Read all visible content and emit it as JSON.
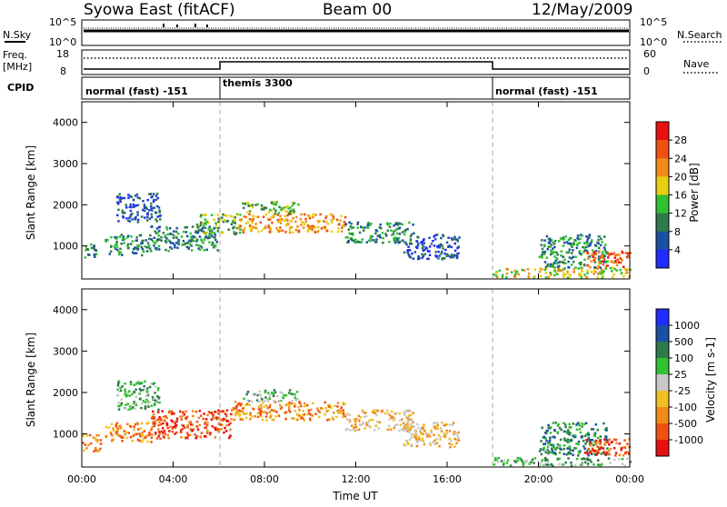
{
  "header": {
    "station": "Syowa East (fitACF)",
    "beam": "Beam 00",
    "date": "12/May/2009"
  },
  "noise_panel": {
    "left_label": "N.Sky",
    "right_label": "N.Search",
    "tick_top": "10^5",
    "tick_bottom": "10^0"
  },
  "freq_panel": {
    "left_label_line1": "Freq.",
    "left_label_line2": "[MHz]",
    "left_tick_top": "18",
    "left_tick_bottom": "8",
    "right_label": "Nave",
    "right_tick_top": "60",
    "right_tick_bottom": "0"
  },
  "cpid": {
    "label": "CPID",
    "segments": [
      {
        "start_h": 0,
        "end_h": 6,
        "name": "normal (fast) -151"
      },
      {
        "start_h": 6,
        "end_h": 18,
        "name": "themis 3300"
      },
      {
        "start_h": 18,
        "end_h": 24,
        "name": "normal (fast) -151"
      }
    ]
  },
  "chart_data": [
    {
      "type": "heatmap",
      "panel": "power",
      "ylabel": "Slant Range [km]",
      "y_ticks": [
        "1000",
        "2000",
        "3000",
        "4000"
      ],
      "ylim": [
        200,
        4500
      ],
      "xlim": [
        0,
        24
      ],
      "colorbar_label": "Power [dB]",
      "colorbar_ticks": [
        "4",
        "8",
        "12",
        "16",
        "20",
        "24",
        "28"
      ],
      "colors": [
        "#1f2bff",
        "#1c4fa6",
        "#2f7a4a",
        "#30c030",
        "#e8d010",
        "#f08a18",
        "#f05010",
        "#e81010"
      ],
      "echo_bands": [
        {
          "start_h": 0.0,
          "end_h": 0.6,
          "range_km": [
            700,
            1100
          ],
          "level": 2
        },
        {
          "start_h": 1.0,
          "end_h": 3.0,
          "range_km": [
            800,
            1300
          ],
          "level": 2
        },
        {
          "start_h": 1.5,
          "end_h": 3.4,
          "range_km": [
            1600,
            2300
          ],
          "level": 1
        },
        {
          "start_h": 3.0,
          "end_h": 6.0,
          "range_km": [
            900,
            1500
          ],
          "level": 2
        },
        {
          "start_h": 5.0,
          "end_h": 7.0,
          "range_km": [
            1300,
            1800
          ],
          "level": 3
        },
        {
          "start_h": 6.8,
          "end_h": 11.5,
          "range_km": [
            1350,
            1800
          ],
          "level": 5
        },
        {
          "start_h": 7.0,
          "end_h": 9.5,
          "range_km": [
            1800,
            2100
          ],
          "level": 3
        },
        {
          "start_h": 11.5,
          "end_h": 14.5,
          "range_km": [
            1100,
            1600
          ],
          "level": 2
        },
        {
          "start_h": 14.0,
          "end_h": 16.5,
          "range_km": [
            700,
            1300
          ],
          "level": 1
        },
        {
          "start_h": 18.0,
          "end_h": 24.0,
          "range_km": [
            250,
            500
          ],
          "level": 4
        },
        {
          "start_h": 20.0,
          "end_h": 23.0,
          "range_km": [
            500,
            1300
          ],
          "level": 2
        },
        {
          "start_h": 22.0,
          "end_h": 24.0,
          "range_km": [
            500,
            900
          ],
          "level": 6
        }
      ]
    },
    {
      "type": "heatmap",
      "panel": "velocity",
      "xlabel": "Time UT",
      "ylabel": "Slant Range [km]",
      "x_ticks": [
        "00:00",
        "04:00",
        "08:00",
        "12:00",
        "16:00",
        "20:00",
        "00:00"
      ],
      "y_ticks": [
        "1000",
        "2000",
        "3000",
        "4000"
      ],
      "ylim": [
        200,
        4500
      ],
      "xlim": [
        0,
        24
      ],
      "colorbar_label": "Velocity [m s-1]",
      "colorbar_ticks": [
        "1000",
        "500",
        "100",
        "25",
        "-25",
        "-100",
        "-500",
        "-1000"
      ],
      "colors": [
        "#1f2bff",
        "#1c4fa6",
        "#2f7a4a",
        "#30c030",
        "#c8c8c8",
        "#f0c020",
        "#f08a18",
        "#f05010",
        "#e81010"
      ],
      "echo_bands": [
        {
          "start_h": 0.0,
          "end_h": 0.8,
          "range_km": [
            600,
            1000
          ],
          "level": 6
        },
        {
          "start_h": 1.0,
          "end_h": 3.0,
          "range_km": [
            800,
            1300
          ],
          "level": 6
        },
        {
          "start_h": 1.5,
          "end_h": 3.4,
          "range_km": [
            1600,
            2300
          ],
          "level": 3
        },
        {
          "start_h": 3.0,
          "end_h": 6.5,
          "range_km": [
            900,
            1600
          ],
          "level": 7
        },
        {
          "start_h": 6.5,
          "end_h": 11.5,
          "range_km": [
            1350,
            1800
          ],
          "level": 6
        },
        {
          "start_h": 7.0,
          "end_h": 9.5,
          "range_km": [
            1800,
            2100
          ],
          "level": 3
        },
        {
          "start_h": 11.5,
          "end_h": 14.5,
          "range_km": [
            1100,
            1600
          ],
          "level": 5
        },
        {
          "start_h": 14.0,
          "end_h": 16.5,
          "range_km": [
            700,
            1300
          ],
          "level": 5
        },
        {
          "start_h": 18.0,
          "end_h": 24.0,
          "range_km": [
            250,
            450
          ],
          "level": 3
        },
        {
          "start_h": 20.0,
          "end_h": 23.0,
          "range_km": [
            500,
            1300
          ],
          "level": 2
        },
        {
          "start_h": 22.0,
          "end_h": 24.0,
          "range_km": [
            500,
            900
          ],
          "level": 7
        }
      ]
    }
  ]
}
